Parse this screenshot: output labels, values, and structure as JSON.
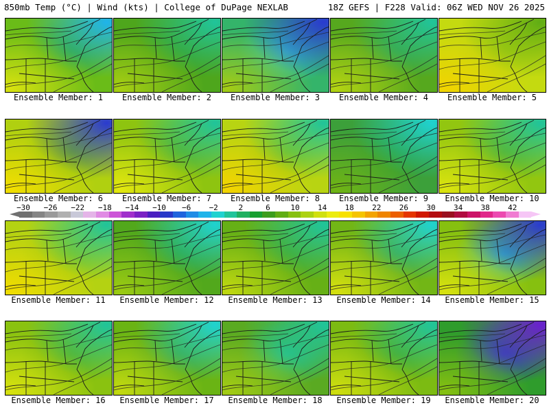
{
  "header": {
    "left": "850mb Temp (°C) | Wind (kts) | College of DuPage NEXLAB",
    "right": "18Z GEFS | F228 Valid: 06Z WED NOV 26 2025"
  },
  "colorbar": {
    "labels": [
      "-30",
      "-26",
      "-22",
      "-18",
      "-14",
      "-10",
      "-6",
      "-2",
      "2",
      "6",
      "10",
      "14",
      "18",
      "22",
      "26",
      "30",
      "34",
      "38",
      "42"
    ],
    "colors": [
      "#707070",
      "#858585",
      "#9a9a9a",
      "#b0b0b0",
      "#c8c8d8",
      "#e4b4e8",
      "#e08ae4",
      "#cc55d8",
      "#a030cc",
      "#7a22c4",
      "#4a1fc0",
      "#2838c8",
      "#1f63dd",
      "#1f8de6",
      "#1fb4ea",
      "#1fd2d0",
      "#20c49a",
      "#1fb060",
      "#18a030",
      "#3c9d1c",
      "#60ad14",
      "#86c010",
      "#acd212",
      "#d0e00f",
      "#ecec10",
      "#f7e100",
      "#f5c400",
      "#f3a400",
      "#ef8500",
      "#ec5f00",
      "#e53500",
      "#d01800",
      "#b30d10",
      "#991020",
      "#b00c40",
      "#cc1468",
      "#e0288a",
      "#ec4ab0",
      "#f07cd2",
      "#f6c6f6"
    ]
  },
  "members": [
    {
      "label": "Ensemble Member: 1",
      "base": "#6abc18",
      "ne": "#1fb4ea",
      "sw": "#d8e20f",
      "mid": "#2fa42a"
    },
    {
      "label": "Ensemble Member: 2",
      "base": "#4ea61c",
      "ne": "#20c49a",
      "sw": "#a8cf12",
      "mid": "#3c9d1c"
    },
    {
      "label": "Ensemble Member: 3",
      "base": "#34b46a",
      "ne": "#2a3bd0",
      "sw": "#a4cc14",
      "mid": "#35c8d8"
    },
    {
      "label": "Ensemble Member: 4",
      "base": "#56a81e",
      "ne": "#20c49a",
      "sw": "#b4d412",
      "mid": "#3ca03a"
    },
    {
      "label": "Ensemble Member: 5",
      "base": "#c4da10",
      "ne": "#60ad14",
      "sw": "#f2d400",
      "mid": "#aacf12"
    },
    {
      "label": "Ensemble Member: 6",
      "base": "#b0d010",
      "ne": "#2a3bd0",
      "sw": "#f2de00",
      "mid": "#6cb514"
    },
    {
      "label": "Ensemble Member: 7",
      "base": "#8ec410",
      "ne": "#20c49a",
      "sw": "#e4e80f",
      "mid": "#5ead16"
    },
    {
      "label": "Ensemble Member: 8",
      "base": "#b8d412",
      "ne": "#20c49a",
      "sw": "#f4d400",
      "mid": "#86c010"
    },
    {
      "label": "Ensemble Member: 9",
      "base": "#3ca03a",
      "ne": "#1fd2d0",
      "sw": "#70b414",
      "mid": "#2f9c2c"
    },
    {
      "label": "Ensemble Member: 10",
      "base": "#92c610",
      "ne": "#20c49a",
      "sw": "#dce40f",
      "mid": "#5ead16"
    },
    {
      "label": "Ensemble Member: 11",
      "base": "#b4d212",
      "ne": "#20c49a",
      "sw": "#f0dc00",
      "mid": "#8ec410"
    },
    {
      "label": "Ensemble Member: 12",
      "base": "#52a81c",
      "ne": "#1fd2d0",
      "sw": "#9ccb12",
      "mid": "#2f9c2c"
    },
    {
      "label": "Ensemble Member: 13",
      "base": "#66b016",
      "ne": "#20c49a",
      "sw": "#c0d810",
      "mid": "#4aa41a"
    },
    {
      "label": "Ensemble Member: 14",
      "base": "#72b616",
      "ne": "#1fd2d0",
      "sw": "#d6e00f",
      "mid": "#3ca03a"
    },
    {
      "label": "Ensemble Member: 15",
      "base": "#86c010",
      "ne": "#2a3bd0",
      "sw": "#d8e20f",
      "mid": "#1fb4ea"
    },
    {
      "label": "Ensemble Member: 16",
      "base": "#8ac210",
      "ne": "#20c49a",
      "sw": "#d8e20f",
      "mid": "#60ad14"
    },
    {
      "label": "Ensemble Member: 17",
      "base": "#6ab414",
      "ne": "#1fd2d0",
      "sw": "#c4da10",
      "mid": "#3ca03a"
    },
    {
      "label": "Ensemble Member: 18",
      "base": "#5aaa22",
      "ne": "#20c49a",
      "sw": "#a4cc14",
      "mid": "#20c49a"
    },
    {
      "label": "Ensemble Member: 19",
      "base": "#7cbb12",
      "ne": "#20c49a",
      "sw": "#d0de0f",
      "mid": "#4aa41a"
    },
    {
      "label": "Ensemble Member: 20",
      "base": "#2f9c2c",
      "ne": "#6a1fd0",
      "sw": "#86c010",
      "mid": "#2a3bd0"
    }
  ]
}
